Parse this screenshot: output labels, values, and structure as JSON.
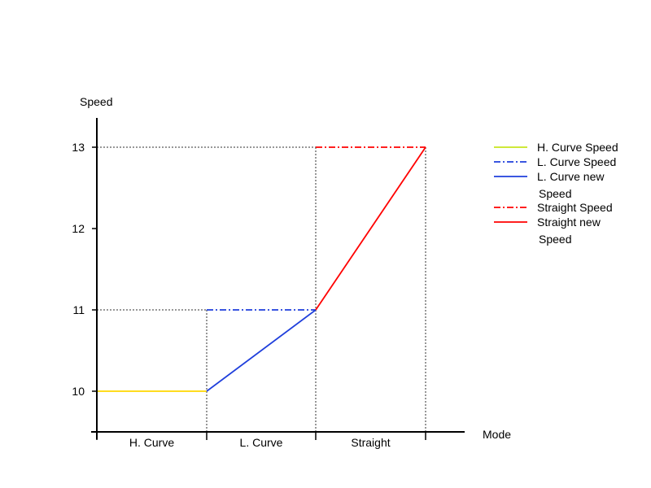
{
  "chart_data": {
    "type": "line",
    "ylabel": "Speed",
    "xlabel": "Mode",
    "categories": [
      "H. Curve",
      "L. Curve",
      "Straight"
    ],
    "y_ticks": [
      "10",
      "11",
      "12",
      "13"
    ],
    "ylim": [
      9.5,
      13.35
    ],
    "grid": false,
    "legend_position": "right",
    "series": [
      {
        "name": "H. Curve Speed",
        "name_lines": [
          "H. Curve Speed"
        ],
        "color": "#ffd700",
        "legend_color": "#c8e61e",
        "dash": "solid",
        "points": [
          [
            "H. Curve start",
            10
          ],
          [
            "H. Curve end",
            10
          ]
        ]
      },
      {
        "name": "L. Curve Speed",
        "name_lines": [
          "L. Curve Speed"
        ],
        "color": "#1f3fdc",
        "dash": "dash-dot",
        "points": [
          [
            "L. Curve start",
            11
          ],
          [
            "L. Curve end",
            11
          ]
        ]
      },
      {
        "name": "L. Curve new Speed",
        "name_lines": [
          "L. Curve new",
          "Speed"
        ],
        "color": "#1f3fdc",
        "dash": "solid",
        "points": [
          [
            "L. Curve start",
            10
          ],
          [
            "L. Curve end",
            11
          ]
        ]
      },
      {
        "name": "Straight Speed",
        "name_lines": [
          "Straight Speed"
        ],
        "color": "#ff0000",
        "dash": "dash-dot",
        "points": [
          [
            "Straight start",
            13
          ],
          [
            "Straight end",
            13
          ]
        ]
      },
      {
        "name": "Straight new Speed",
        "name_lines": [
          "Straight  new",
          "Speed"
        ],
        "color": "#ff0000",
        "dash": "solid",
        "points": [
          [
            "Straight start",
            11
          ],
          [
            "Straight end",
            13
          ]
        ]
      }
    ],
    "reference_lines": [
      {
        "value": 11,
        "from": "axis",
        "to": "L. Curve start"
      },
      {
        "value": 13,
        "from": "axis",
        "to": "Straight start"
      }
    ]
  }
}
